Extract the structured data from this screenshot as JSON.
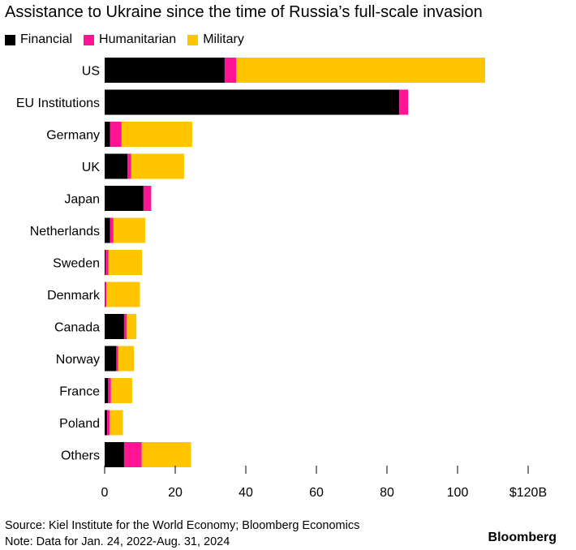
{
  "title": "Assistance to Ukraine since the time of Russia’s full-scale invasion",
  "legend": [
    {
      "label": "Financial",
      "color": "#000000"
    },
    {
      "label": "Humanitarian",
      "color": "#ff1493"
    },
    {
      "label": "Military",
      "color": "#ffc600"
    }
  ],
  "footer": {
    "source": "Source: Kiel Institute for the World Economy; Bloomberg Economics",
    "note": "Note: Data for Jan. 24, 2022-Aug. 31, 2024",
    "brand": "Bloomberg"
  },
  "chart_data": {
    "type": "bar",
    "orientation": "horizontal",
    "stacked": true,
    "categories": [
      "US",
      "EU Institutions",
      "Germany",
      "UK",
      "Japan",
      "Netherlands",
      "Sweden",
      "Denmark",
      "Canada",
      "Norway",
      "France",
      "Poland",
      "Others"
    ],
    "series": [
      {
        "name": "Financial",
        "color": "#000000",
        "values": [
          34,
          83.5,
          1.5,
          6.5,
          11,
          1.5,
          0.3,
          0.1,
          5.5,
          3.3,
          1,
          0.7,
          5.5
        ]
      },
      {
        "name": "Humanitarian",
        "color": "#ff1493",
        "values": [
          3.3,
          2.5,
          3.3,
          1,
          2.2,
          1,
          0.8,
          0.4,
          0.8,
          0.5,
          0.8,
          0.7,
          5
        ]
      },
      {
        "name": "Military",
        "color": "#ffc600",
        "values": [
          70.5,
          0,
          20,
          15,
          0,
          9,
          9.5,
          9.5,
          2.7,
          4.5,
          6,
          3.8,
          14
        ]
      }
    ],
    "xlim": [
      0,
      120
    ],
    "xticks": [
      "0",
      "20",
      "40",
      "60",
      "80",
      "100",
      "$120B"
    ],
    "grid": false,
    "legend_position": "top-left"
  }
}
